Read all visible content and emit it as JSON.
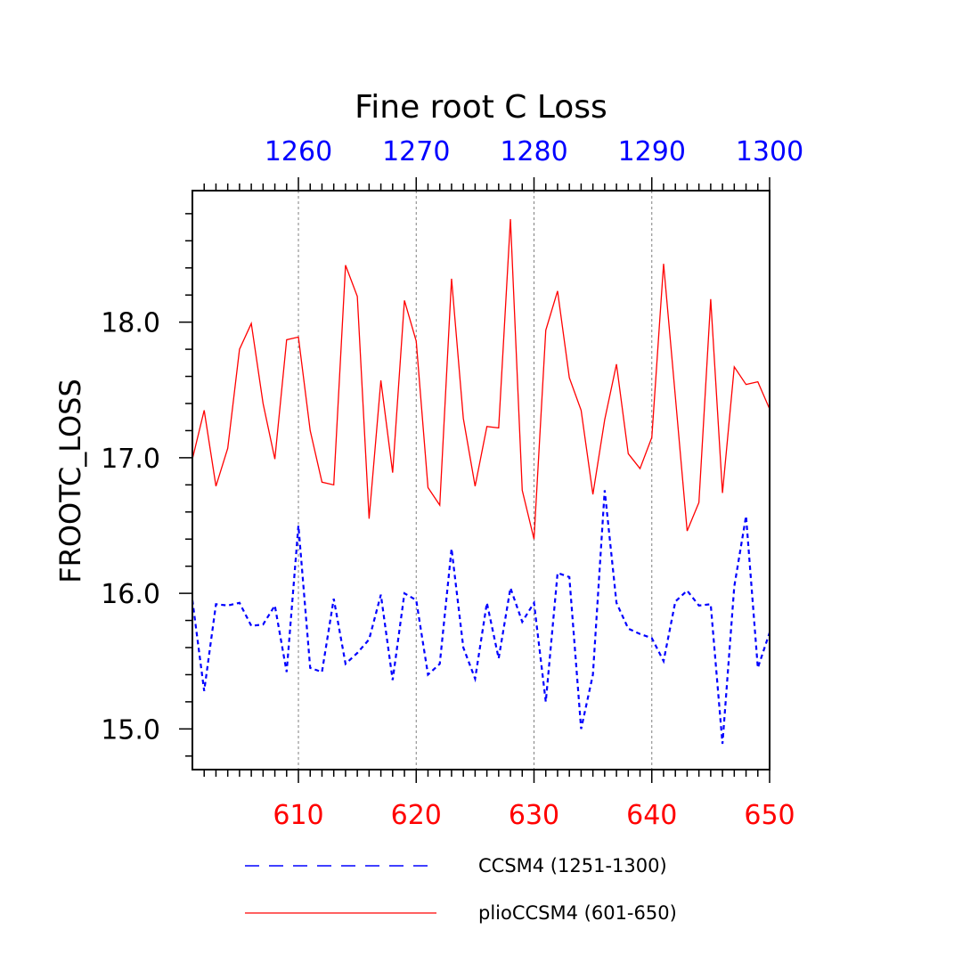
{
  "chart_data": {
    "type": "line",
    "title": "Fine root C Loss",
    "ylabel": "FROOTC_LOSS",
    "xlabel": "",
    "ylim": [
      14.7,
      18.97
    ],
    "grid": "vertical dashed lines at major bottom-axis ticks",
    "legend_placement": "bottom",
    "bottom_axis": {
      "color": "#ff0000",
      "range": [
        601,
        650
      ],
      "tick_labels": [
        "610",
        "620",
        "630",
        "640",
        "650"
      ],
      "ticks": [
        610,
        620,
        630,
        640,
        650
      ]
    },
    "top_axis": {
      "color": "#0000ff",
      "range": [
        1251,
        1300
      ],
      "tick_labels": [
        "1260",
        "1270",
        "1280",
        "1290",
        "1300"
      ],
      "ticks": [
        1260,
        1270,
        1280,
        1290,
        1300
      ]
    },
    "y_ticks": [
      15.0,
      16.0,
      17.0,
      18.0
    ],
    "y_tick_labels": [
      "15.0",
      "16.0",
      "17.0",
      "18.0"
    ],
    "x": [
      601,
      602,
      603,
      604,
      605,
      606,
      607,
      608,
      609,
      610,
      611,
      612,
      613,
      614,
      615,
      616,
      617,
      618,
      619,
      620,
      621,
      622,
      623,
      624,
      625,
      626,
      627,
      628,
      629,
      630,
      631,
      632,
      633,
      634,
      635,
      636,
      637,
      638,
      639,
      640,
      641,
      642,
      643,
      644,
      645,
      646,
      647,
      648,
      649,
      650
    ],
    "series": [
      {
        "name": "CCSM4 (1251-1300)",
        "axis": "top",
        "x_range": [
          1251,
          1300
        ],
        "color": "#0000ff",
        "style": "dashed",
        "values": [
          15.95,
          15.28,
          15.92,
          15.91,
          15.93,
          15.76,
          15.77,
          15.91,
          15.42,
          16.5,
          15.45,
          15.42,
          15.96,
          15.48,
          15.56,
          15.66,
          15.99,
          15.36,
          16.0,
          15.95,
          15.4,
          15.48,
          16.33,
          15.6,
          15.37,
          15.93,
          15.52,
          16.04,
          15.79,
          15.93,
          15.2,
          16.15,
          16.12,
          15.0,
          15.4,
          16.76,
          15.93,
          15.74,
          15.7,
          15.67,
          15.5,
          15.94,
          16.02,
          15.91,
          15.92,
          14.89,
          16.05,
          16.57,
          15.45,
          15.71
        ]
      },
      {
        "name": "plioCCSM4 (601-650)",
        "axis": "bottom",
        "x_range": [
          601,
          650
        ],
        "color": "#ff0000",
        "style": "solid",
        "values": [
          16.99,
          17.35,
          16.79,
          17.07,
          17.8,
          17.99,
          17.4,
          16.99,
          17.87,
          17.89,
          17.2,
          16.82,
          16.8,
          18.42,
          18.19,
          16.55,
          17.57,
          16.89,
          18.16,
          17.86,
          16.78,
          16.65,
          18.32,
          17.29,
          16.79,
          17.23,
          17.22,
          18.76,
          16.76,
          16.4,
          17.94,
          18.23,
          17.59,
          17.35,
          16.73,
          17.28,
          17.69,
          17.03,
          16.92,
          17.15,
          18.43,
          17.45,
          16.46,
          16.67,
          18.17,
          16.74,
          17.67,
          17.54,
          17.56,
          17.36
        ]
      }
    ]
  }
}
